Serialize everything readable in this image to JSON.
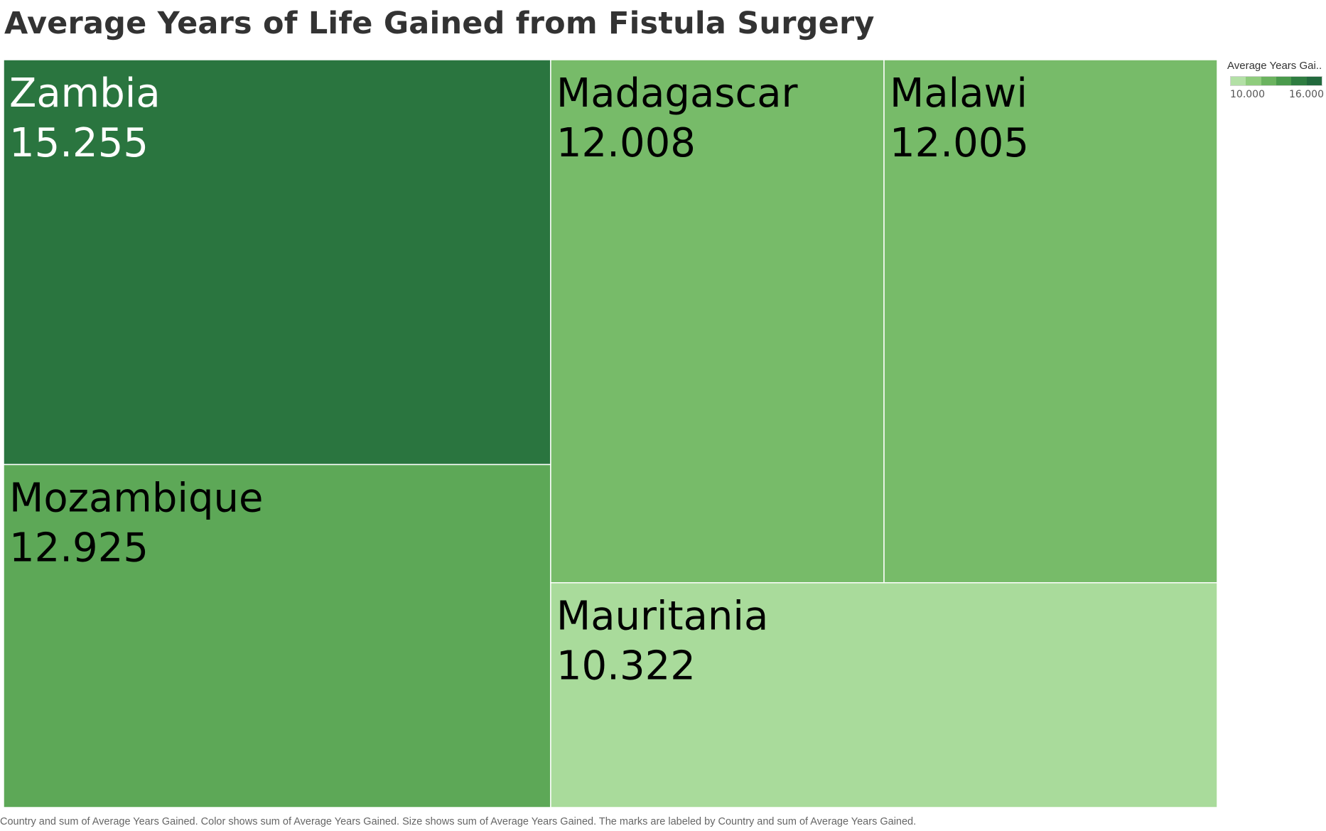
{
  "chart_data": {
    "type": "treemap",
    "title": "Average Years of Life Gained from Fistula Surgery",
    "items": [
      {
        "name": "Zambia",
        "value": 15.255,
        "label": "15.255"
      },
      {
        "name": "Mozambique",
        "value": 12.925,
        "label": "12.925"
      },
      {
        "name": "Madagascar",
        "value": 12.008,
        "label": "12.008"
      },
      {
        "name": "Malawi",
        "value": 12.005,
        "label": "12.005"
      },
      {
        "name": "Mauritania",
        "value": 10.322,
        "label": "10.322"
      }
    ],
    "color_legend": {
      "title": "Average Years Gai..",
      "min_label": "10.000",
      "max_label": "16.000",
      "min": 10,
      "max": 16,
      "colors": [
        "#b3e0a6",
        "#8fcc7d",
        "#6bb35f",
        "#4a9a4c",
        "#2f7d41",
        "#22693d"
      ]
    },
    "caption": "Country and sum of Average Years Gained.  Color shows sum of Average Years Gained.  Size shows sum of Average Years Gained.  The marks are labeled by Country and sum of Average Years Gained."
  }
}
